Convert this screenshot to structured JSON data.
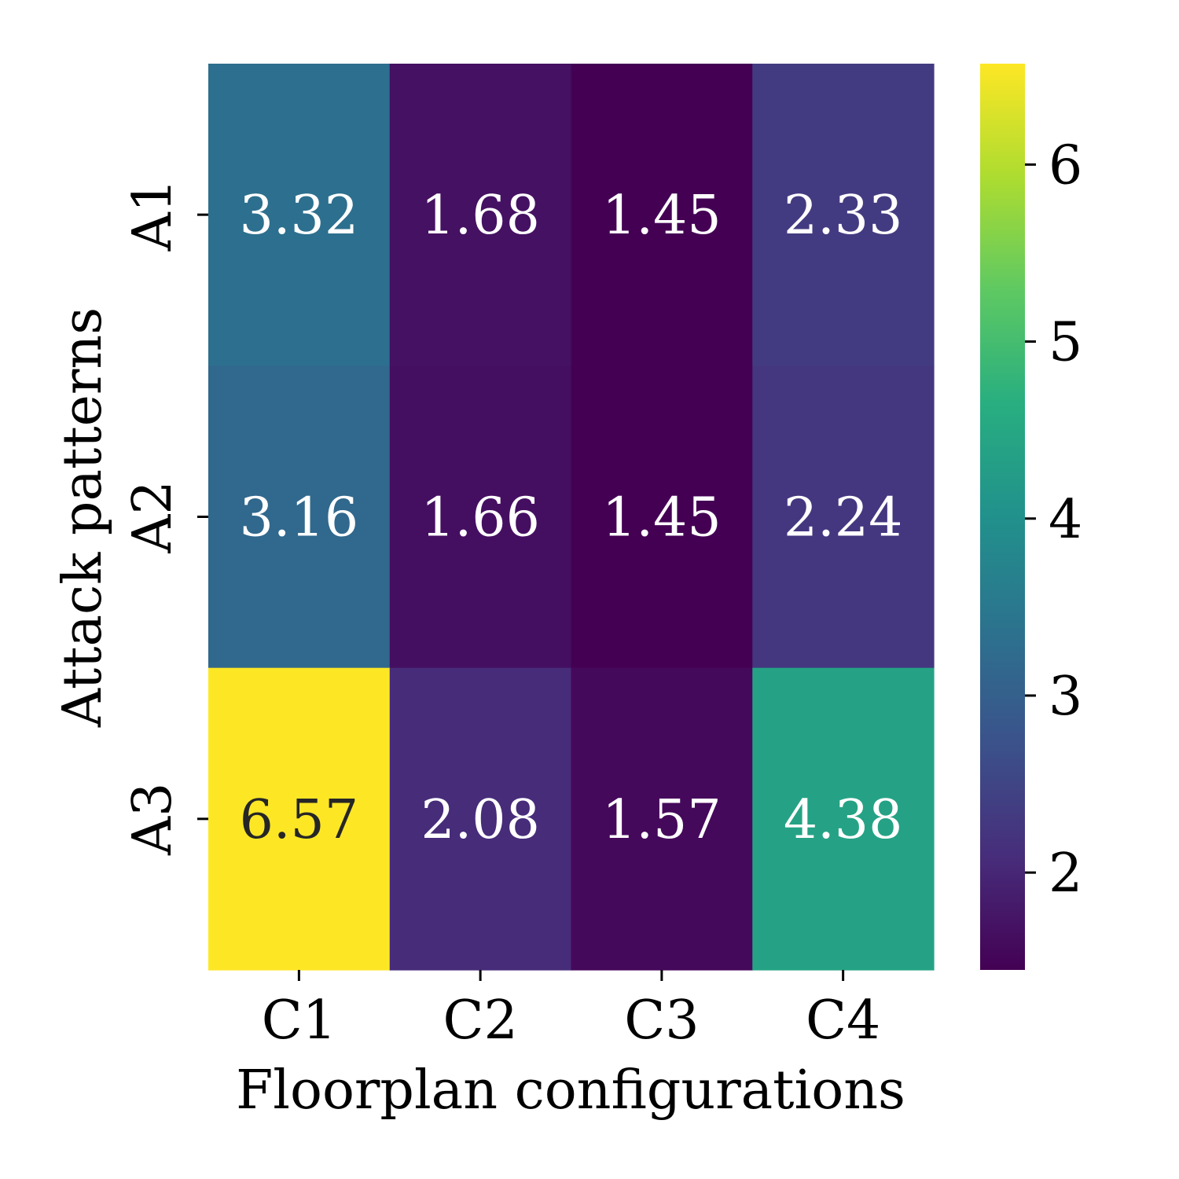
{
  "chart_data": {
    "type": "heatmap",
    "title": "",
    "xlabel": "Floorplan configurations",
    "ylabel": "Attack patterns",
    "x_categories": [
      "C1",
      "C2",
      "C3",
      "C4"
    ],
    "y_categories": [
      "A1",
      "A2",
      "A3"
    ],
    "values": [
      [
        3.32,
        1.68,
        1.45,
        2.33
      ],
      [
        3.16,
        1.66,
        1.45,
        2.24
      ],
      [
        6.57,
        2.08,
        1.57,
        4.38
      ]
    ],
    "cell_labels": [
      [
        "3.32",
        "1.68",
        "1.45",
        "2.33"
      ],
      [
        "3.16",
        "1.66",
        "1.45",
        "2.24"
      ],
      [
        "6.57",
        "2.08",
        "1.57",
        "4.38"
      ]
    ],
    "colormap": "viridis",
    "vmin": 1.45,
    "vmax": 6.57,
    "colorbar": {
      "ticks": [
        2,
        3,
        4,
        5,
        6
      ],
      "tick_labels": [
        "2",
        "3",
        "4",
        "5",
        "6"
      ]
    },
    "colors": {
      "light_text": "#ffffff",
      "dark_text": "#262626"
    }
  }
}
